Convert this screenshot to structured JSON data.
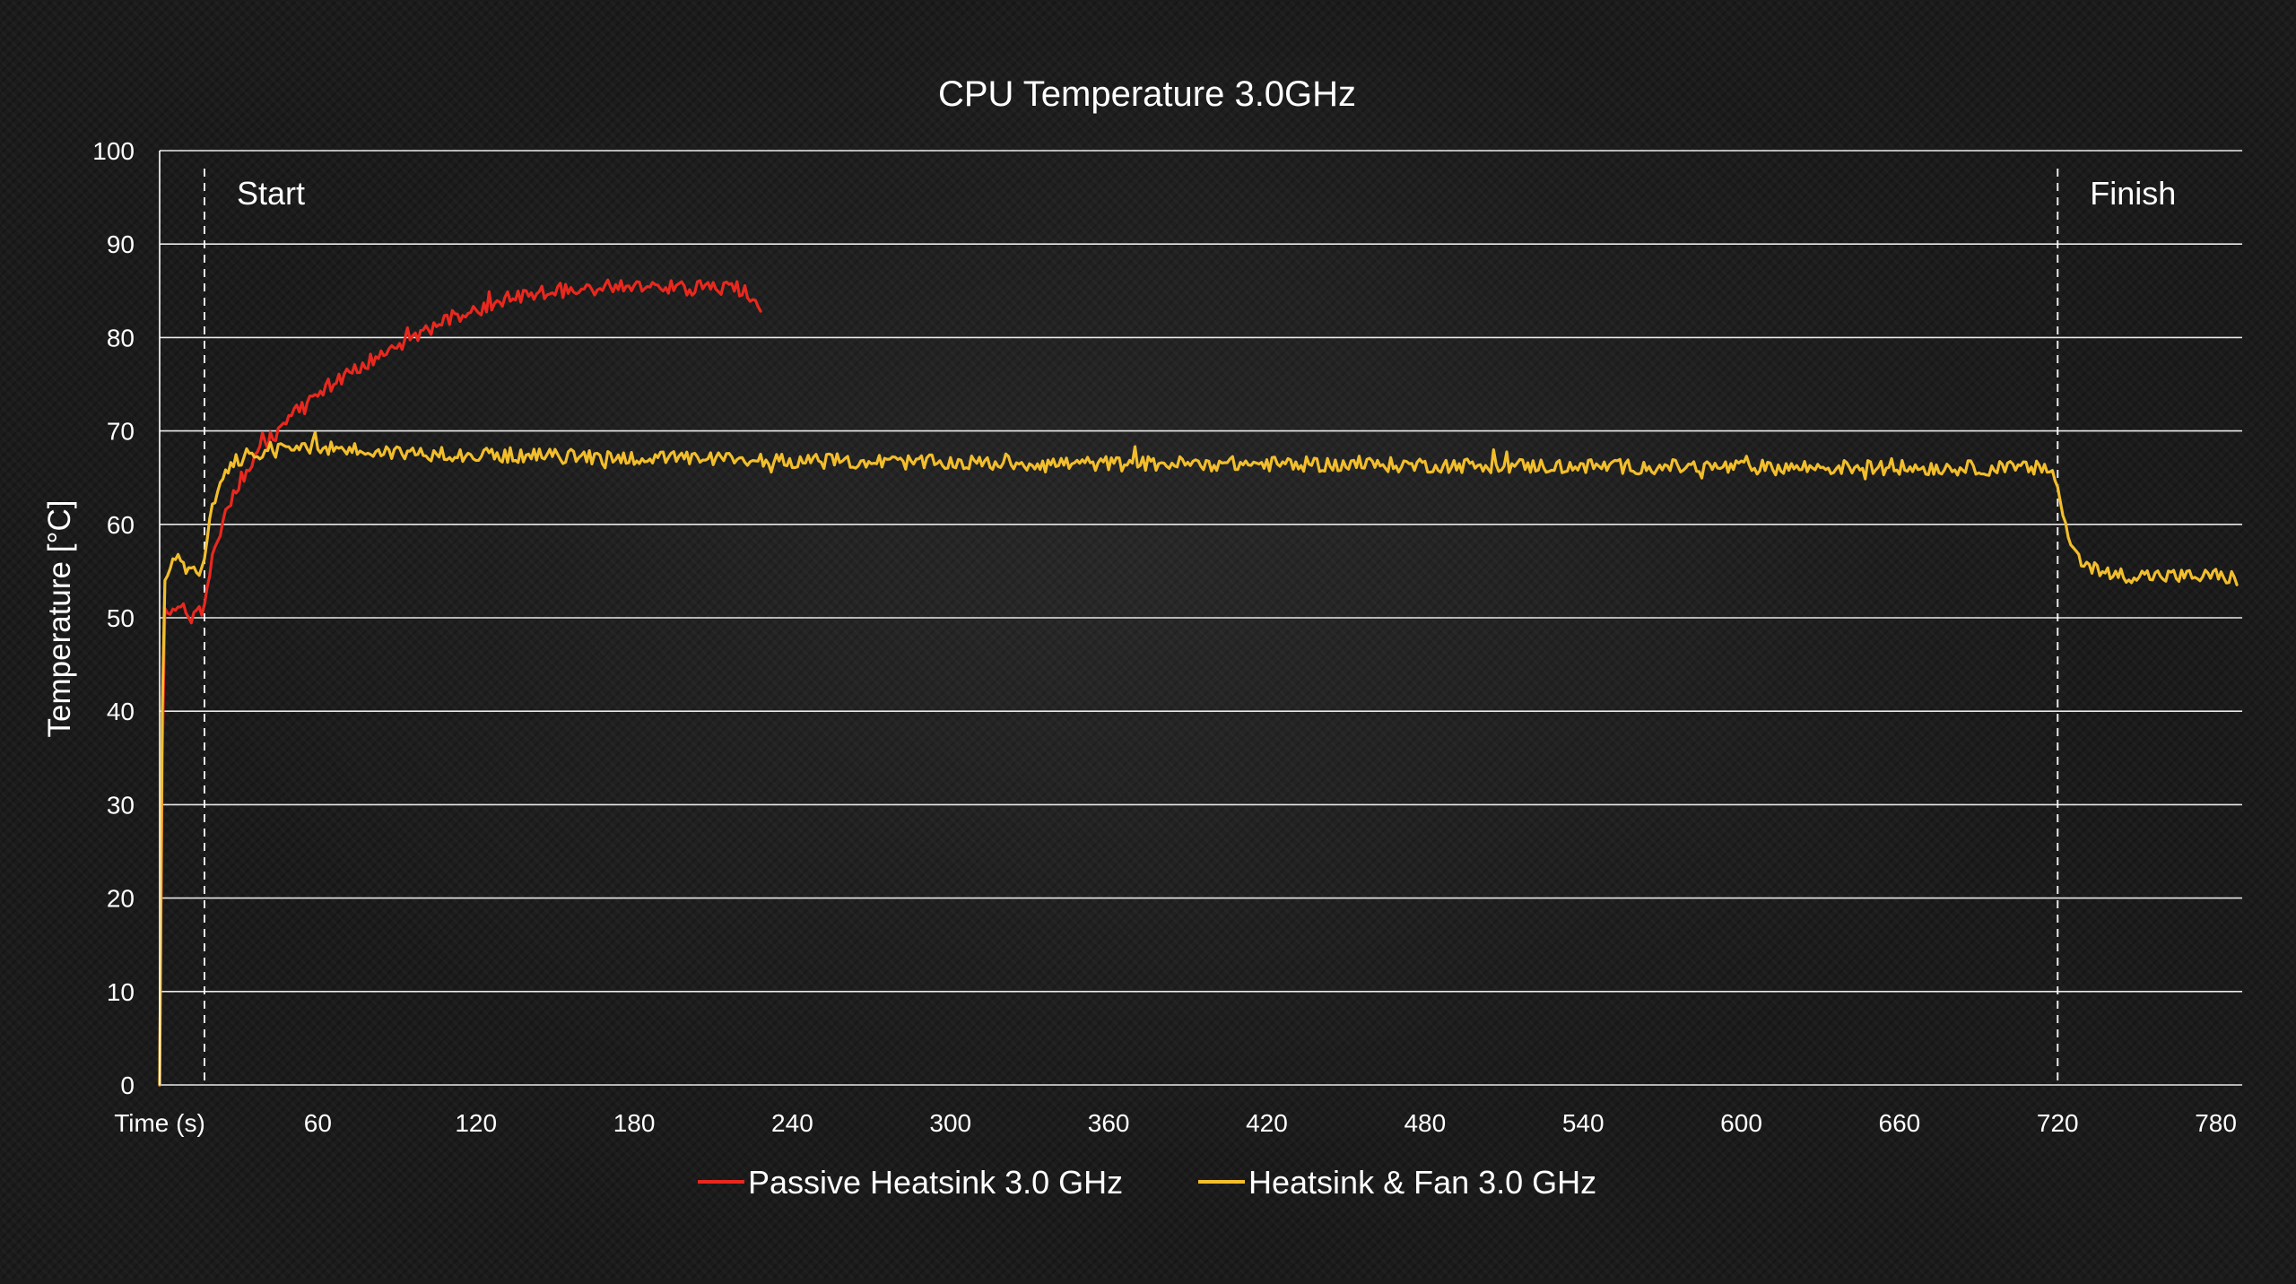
{
  "chart_data": {
    "type": "line",
    "title": "CPU Temperature 3.0GHz",
    "ylabel": "Temperature [°C]",
    "xlabel": "",
    "xlim": [
      0,
      790
    ],
    "ylim": [
      0,
      100
    ],
    "y_ticks": [
      0,
      10,
      20,
      30,
      40,
      50,
      60,
      70,
      80,
      90,
      100
    ],
    "x_ticks": [
      {
        "value": 0,
        "label": "Time (s)"
      },
      {
        "value": 60,
        "label": "60"
      },
      {
        "value": 120,
        "label": "120"
      },
      {
        "value": 180,
        "label": "180"
      },
      {
        "value": 240,
        "label": "240"
      },
      {
        "value": 300,
        "label": "300"
      },
      {
        "value": 360,
        "label": "360"
      },
      {
        "value": 420,
        "label": "420"
      },
      {
        "value": 480,
        "label": "480"
      },
      {
        "value": 540,
        "label": "540"
      },
      {
        "value": 600,
        "label": "600"
      },
      {
        "value": 660,
        "label": "660"
      },
      {
        "value": 720,
        "label": "720"
      },
      {
        "value": 780,
        "label": "780"
      }
    ],
    "grid": "horizontal",
    "legend_position": "bottom-center",
    "annotations": [
      {
        "x": 17,
        "label": "Start",
        "label_side": "right"
      },
      {
        "x": 720,
        "label": "Finish",
        "label_side": "right"
      }
    ],
    "series": [
      {
        "name": "Passive Heatsink 3.0 GHz",
        "color": "#e8281e",
        "x": [
          0,
          1,
          2,
          4,
          6,
          8,
          10,
          12,
          14,
          16,
          17,
          18,
          20,
          22,
          24,
          26,
          28,
          30,
          35,
          40,
          45,
          50,
          55,
          60,
          70,
          80,
          90,
          100,
          110,
          120,
          130,
          140,
          150,
          160,
          170,
          180,
          190,
          200,
          210,
          220,
          228
        ],
        "y": [
          0,
          35,
          51,
          50,
          51,
          50.5,
          51,
          50,
          51,
          50,
          51,
          53,
          56,
          58.5,
          60.5,
          62,
          63.5,
          64.5,
          66.5,
          68.5,
          70,
          71.5,
          72.5,
          74,
          76,
          77.5,
          79,
          80.5,
          82,
          83,
          84,
          84.5,
          85,
          85.2,
          85.5,
          85.3,
          85.5,
          85.3,
          85.4,
          85.2,
          83.5
        ]
      },
      {
        "name": "Heatsink & Fan 3.0 GHz",
        "color": "#f2be2c",
        "x": [
          0,
          1,
          2,
          4,
          6,
          8,
          10,
          12,
          14,
          16,
          17,
          18,
          20,
          22,
          25,
          30,
          35,
          40,
          45,
          50,
          55,
          60,
          80,
          100,
          150,
          200,
          250,
          300,
          350,
          400,
          450,
          500,
          550,
          600,
          650,
          700,
          716,
          718,
          720,
          722,
          724,
          727,
          730,
          735,
          740,
          750,
          760,
          770,
          780,
          788
        ],
        "y": [
          0,
          40,
          54,
          55,
          56.5,
          56,
          55,
          55.5,
          55,
          55,
          56,
          59,
          62,
          64,
          65.5,
          67,
          67.5,
          68,
          68.2,
          68.5,
          68.3,
          68.3,
          67.8,
          67.6,
          67.3,
          67,
          66.8,
          66.6,
          66.5,
          66.5,
          66.4,
          66.3,
          66.2,
          66.1,
          66.1,
          66,
          66,
          65.8,
          64,
          61,
          58.5,
          57,
          56,
          55,
          54.7,
          54.5,
          54.5,
          54.4,
          54.5,
          54.2
        ]
      }
    ]
  }
}
